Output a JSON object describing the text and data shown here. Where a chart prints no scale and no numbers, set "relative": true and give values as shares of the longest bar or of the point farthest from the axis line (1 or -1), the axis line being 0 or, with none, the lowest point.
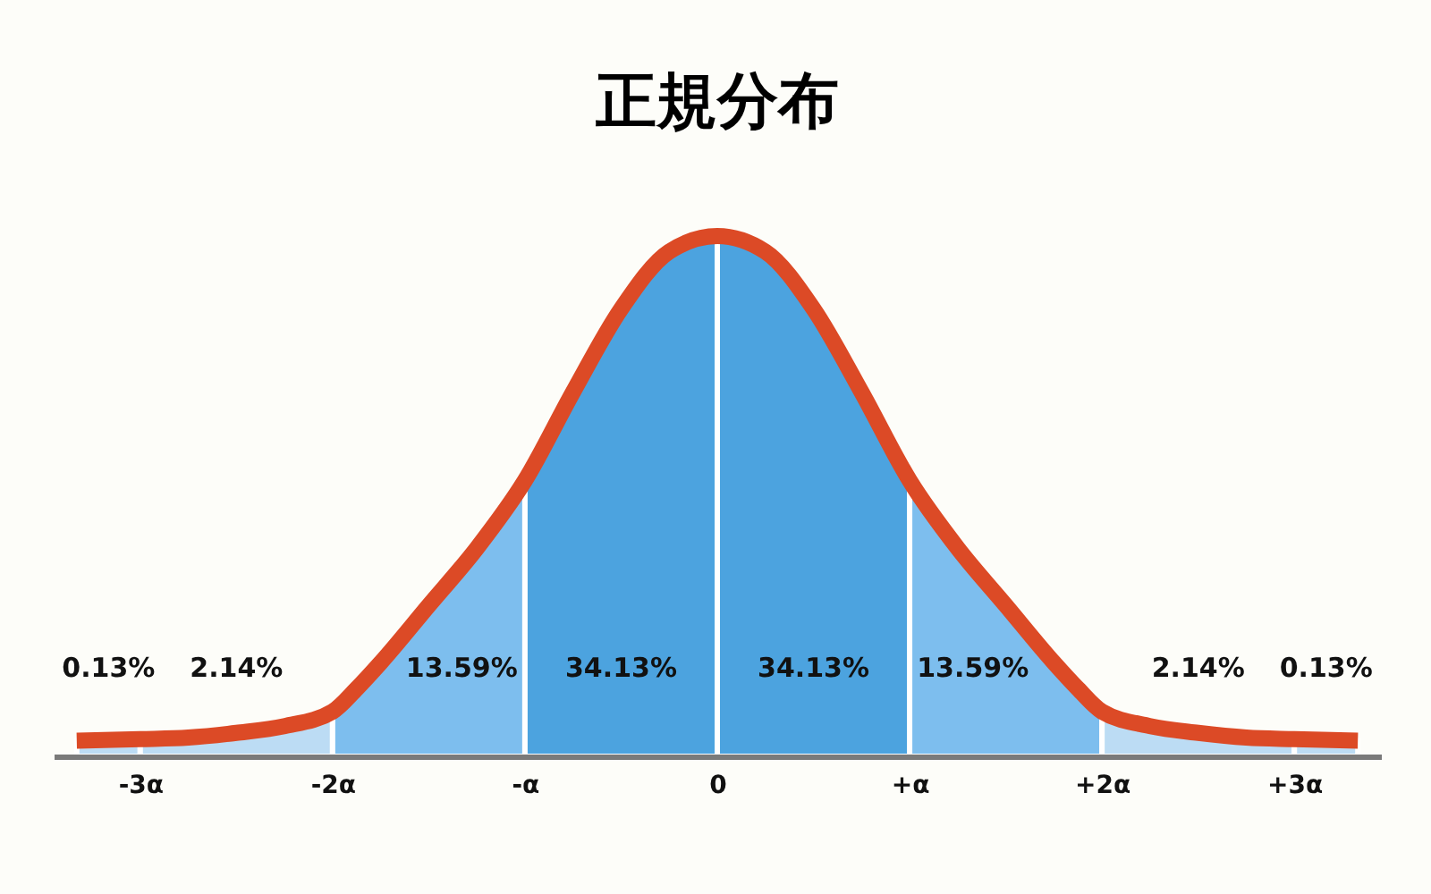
{
  "chart_data": {
    "type": "area",
    "title": "正規分布",
    "relative": true,
    "xlim": [
      -3.45,
      3.45
    ],
    "xticks": [
      {
        "value": -3,
        "label": "-3α"
      },
      {
        "value": -2,
        "label": "-2α"
      },
      {
        "value": -1,
        "label": "-α"
      },
      0,
      {
        "value": 1,
        "label": "+α"
      },
      {
        "value": 2,
        "label": "+2α"
      },
      {
        "value": 3,
        "label": "+3α"
      }
    ],
    "series": [
      {
        "name": "0.13%",
        "color": "#bcdcf4",
        "x": [
          -3.33,
          -3
        ],
        "values": [
          0.03,
          0.033
        ]
      },
      {
        "name": "2.14%",
        "color": "#bcdcf4",
        "x": [
          -3,
          -2.75,
          -2.5,
          -2.25,
          -2
        ],
        "values": [
          0.033,
          0.036,
          0.045,
          0.058,
          0.086
        ]
      },
      {
        "name": "13.59%",
        "color": "#7dbeee",
        "x": [
          -2,
          -1.875,
          -1.75,
          -1.5,
          -1.25,
          -1
        ],
        "values": [
          0.086,
          0.13,
          0.18,
          0.29,
          0.4,
          0.53
        ]
      },
      {
        "name": "34.13%",
        "color": "#4ca3df",
        "x": [
          -1,
          -0.75,
          -0.5,
          -0.25,
          0
        ],
        "values": [
          0.53,
          0.7,
          0.86,
          0.97,
          1
        ]
      },
      {
        "name": "34.13%",
        "color": "#4ca3df",
        "x": [
          0,
          0.25,
          0.5,
          0.75,
          1
        ],
        "values": [
          1,
          0.97,
          0.86,
          0.7,
          0.53
        ]
      },
      {
        "name": "13.59%",
        "color": "#7dbeee",
        "x": [
          1,
          1.25,
          1.5,
          1.75,
          1.875,
          2
        ],
        "values": [
          0.53,
          0.4,
          0.29,
          0.18,
          0.13,
          0.086
        ]
      },
      {
        "name": "2.14%",
        "color": "#bcdcf4",
        "x": [
          2,
          2.25,
          2.5,
          2.75,
          3
        ],
        "values": [
          0.086,
          0.058,
          0.045,
          0.036,
          0.033
        ]
      },
      {
        "name": "0.13%",
        "color": "#bcdcf4",
        "x": [
          3,
          3.33
        ],
        "values": [
          0.033,
          0.03
        ]
      },
      {
        "type": "line",
        "color": "#dc4a26",
        "x": [
          -3.33,
          -3,
          -2.75,
          -2.5,
          -2.25,
          -2,
          -1.875,
          -1.75,
          -1.5,
          -1.25,
          -1,
          -0.75,
          -0.5,
          -0.25,
          0,
          0.25,
          0.5,
          0.75,
          1,
          1.25,
          1.5,
          1.75,
          1.875,
          2,
          2.25,
          2.5,
          2.75,
          3,
          3.33
        ],
        "values": [
          0.03,
          0.033,
          0.036,
          0.045,
          0.058,
          0.086,
          0.13,
          0.18,
          0.29,
          0.4,
          0.53,
          0.7,
          0.86,
          0.97,
          1,
          0.97,
          0.86,
          0.7,
          0.53,
          0.4,
          0.29,
          0.18,
          0.13,
          0.086,
          0.058,
          0.045,
          0.036,
          0.033,
          0.03
        ]
      }
    ]
  }
}
